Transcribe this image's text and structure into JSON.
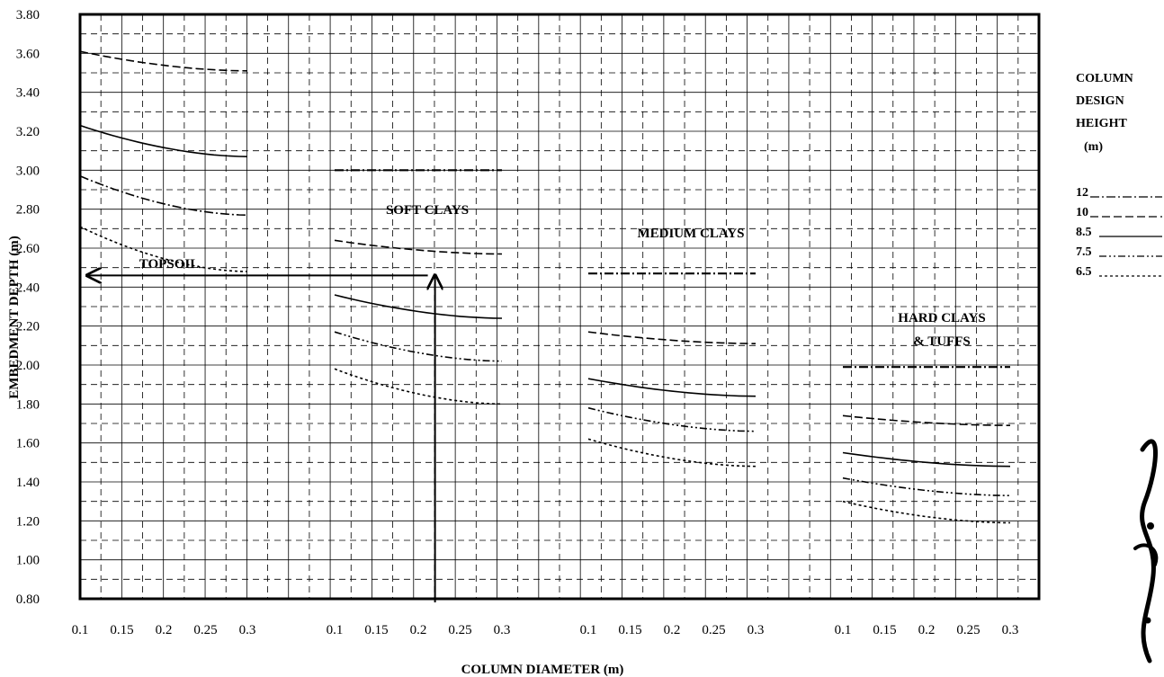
{
  "chart_data": {
    "type": "line",
    "xlabel": "COLUMN DIAMETER (m)",
    "ylabel": "EMBEDMENT DEPTH (m)",
    "ylim": [
      0.8,
      3.8
    ],
    "y_ticks": [
      "3.80",
      "3.60",
      "3.40",
      "3.20",
      "3.00",
      "2.80",
      "2.60",
      "2.40",
      "2.20",
      "2.00",
      "1.80",
      "1.60",
      "1.40",
      "1.20",
      "1.00",
      "0.80"
    ],
    "x_ticks": [
      "0.1",
      "0.15",
      "0.2",
      "0.25",
      "0.3"
    ],
    "grid": true,
    "legend": {
      "title_lines": [
        "COLUMN",
        "DESIGN",
        "HEIGHT",
        "(m)"
      ],
      "entries": [
        {
          "label": "12",
          "dash": "10,3,2,3"
        },
        {
          "label": "10",
          "dash": "9,4"
        },
        {
          "label": "8.5",
          "dash": ""
        },
        {
          "label": "7.5",
          "dash": "8,3,2,3,2,3"
        },
        {
          "label": "6.5",
          "dash": "3,3"
        }
      ]
    },
    "panels": [
      {
        "name": "TOPSOIL",
        "x": [
          0.1,
          0.3
        ],
        "series": [
          {
            "name": "12",
            "values": [
              2.97,
              2.77
            ]
          },
          {
            "name": "10",
            "values": [
              3.61,
              3.51
            ]
          },
          {
            "name": "8.5",
            "values": [
              3.23,
              3.07
            ]
          },
          {
            "name": "6.5",
            "values": [
              2.71,
              2.48
            ]
          }
        ]
      },
      {
        "name": "SOFT CLAYS",
        "x": [
          0.1,
          0.3
        ],
        "series": [
          {
            "name": "12",
            "values": [
              3.0,
              3.0
            ]
          },
          {
            "name": "10",
            "values": [
              2.64,
              2.57
            ]
          },
          {
            "name": "8.5",
            "values": [
              2.36,
              2.24
            ]
          },
          {
            "name": "7.5",
            "values": [
              2.17,
              2.02
            ]
          },
          {
            "name": "6.5",
            "values": [
              1.98,
              1.8
            ]
          }
        ]
      },
      {
        "name": "MEDIUM CLAYS",
        "x": [
          0.1,
          0.3
        ],
        "series": [
          {
            "name": "12",
            "values": [
              2.47,
              2.47
            ]
          },
          {
            "name": "10",
            "values": [
              2.17,
              2.11
            ]
          },
          {
            "name": "8.5",
            "values": [
              1.93,
              1.84
            ]
          },
          {
            "name": "7.5",
            "values": [
              1.78,
              1.66
            ]
          },
          {
            "name": "6.5",
            "values": [
              1.62,
              1.48
            ]
          }
        ]
      },
      {
        "name": "HARD CLAYS & TUFFS",
        "name_lines": [
          "HARD CLAYS",
          "& TUFFS"
        ],
        "x": [
          0.1,
          0.3
        ],
        "series": [
          {
            "name": "12",
            "values": [
              1.99,
              1.99
            ]
          },
          {
            "name": "10",
            "values": [
              1.74,
              1.69
            ]
          },
          {
            "name": "8.5",
            "values": [
              1.55,
              1.48
            ]
          },
          {
            "name": "7.5",
            "values": [
              1.42,
              1.33
            ]
          },
          {
            "name": "6.5",
            "values": [
              1.3,
              1.19
            ]
          }
        ]
      }
    ],
    "annotation": {
      "type": "reading-arrows",
      "diameter": 0.22,
      "panel": "SOFT CLAYS",
      "depth": 2.46
    }
  }
}
